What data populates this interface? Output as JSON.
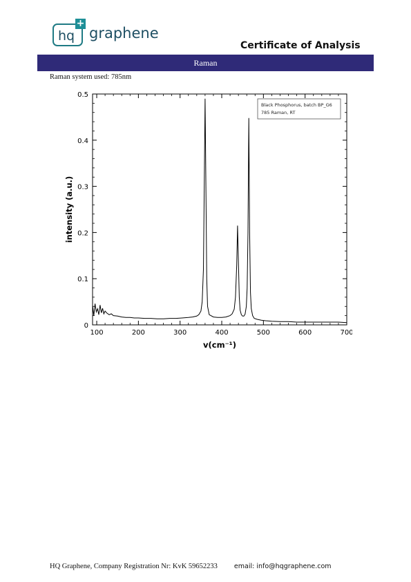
{
  "header": {
    "logo": {
      "mark": "hq",
      "plus": "+",
      "name": "graphene"
    },
    "title": "Certificate of Analysis"
  },
  "section": {
    "title": "Raman",
    "system_line": "Raman system used: 785nm"
  },
  "footer": {
    "company": "HQ Graphene, Company Registration Nr: KvK 59652233",
    "email": "email: info@hqgraphene.com"
  },
  "colors": {
    "section_bar": "#2f2a78",
    "logo": "#1e7a84",
    "spectrum": "#000000"
  },
  "chart_data": {
    "type": "line",
    "title": "",
    "xlabel": "v(cm⁻¹)",
    "ylabel": "intensity (a.u.)",
    "xlim": [
      90,
      700
    ],
    "ylim": [
      0,
      0.5
    ],
    "x_ticks": [
      100,
      200,
      300,
      400,
      500,
      600,
      700
    ],
    "y_ticks": [
      0,
      0.1,
      0.2,
      0.3,
      0.4,
      0.5
    ],
    "y_tick_labels": [
      "0",
      "0.1",
      "0.2",
      "0.3",
      "0.4",
      "0.5"
    ],
    "grid": false,
    "legend": {
      "position": "top-right",
      "lines": [
        "Black Phosphorus, batch BP_G6",
        "785 Raman, RT"
      ]
    },
    "series": [
      {
        "x": [
          90,
          93,
          96,
          99,
          102,
          105,
          108,
          111,
          114,
          117,
          120,
          125,
          130,
          135,
          140,
          150,
          160,
          170,
          180,
          190,
          200,
          215,
          230,
          245,
          260,
          275,
          290,
          305,
          320,
          330,
          340,
          345,
          350,
          353,
          356,
          358,
          360,
          362,
          364,
          366,
          370,
          380,
          390,
          400,
          410,
          420,
          425,
          430,
          433,
          436,
          438,
          440,
          442,
          444,
          447,
          450,
          453,
          456,
          459,
          461,
          463,
          465,
          467,
          469,
          471,
          474,
          478,
          485,
          495,
          505,
          520,
          540,
          560,
          580,
          600,
          620,
          640,
          660,
          680,
          700
        ],
        "y": [
          0.042,
          0.02,
          0.046,
          0.028,
          0.035,
          0.022,
          0.043,
          0.026,
          0.036,
          0.024,
          0.03,
          0.025,
          0.022,
          0.024,
          0.02,
          0.019,
          0.017,
          0.016,
          0.016,
          0.015,
          0.015,
          0.014,
          0.014,
          0.013,
          0.013,
          0.014,
          0.014,
          0.015,
          0.016,
          0.017,
          0.019,
          0.022,
          0.03,
          0.05,
          0.12,
          0.3,
          0.49,
          0.3,
          0.1,
          0.04,
          0.022,
          0.017,
          0.016,
          0.016,
          0.017,
          0.02,
          0.024,
          0.034,
          0.06,
          0.13,
          0.215,
          0.14,
          0.06,
          0.032,
          0.022,
          0.019,
          0.019,
          0.023,
          0.04,
          0.08,
          0.2,
          0.448,
          0.2,
          0.07,
          0.035,
          0.02,
          0.014,
          0.012,
          0.01,
          0.009,
          0.008,
          0.007,
          0.007,
          0.006,
          0.006,
          0.006,
          0.006,
          0.006,
          0.006,
          0.005
        ]
      }
    ]
  }
}
